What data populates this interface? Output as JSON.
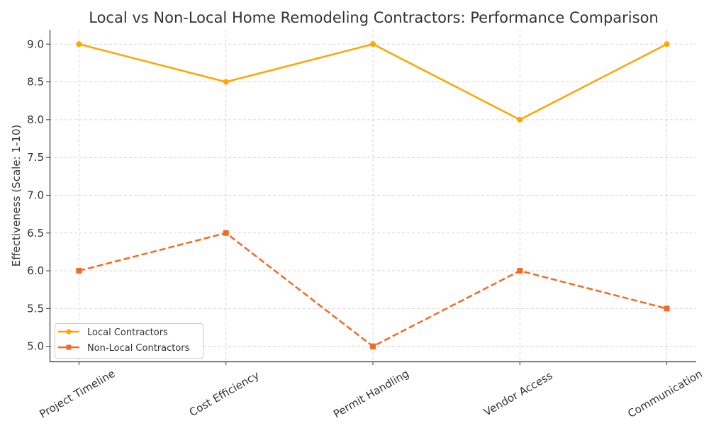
{
  "chart_data": {
    "type": "line",
    "title": "Local vs Non-Local Home Remodeling Contractors: Performance Comparison",
    "xlabel": "",
    "ylabel": "Effectiveness (Scale: 1-10)",
    "categories": [
      "Project Timeline",
      "Cost Efficiency",
      "Permit Handling",
      "Vendor Access",
      "Communication"
    ],
    "series": [
      {
        "name": "Local Contractors",
        "values": [
          9,
          8.5,
          9,
          8,
          9
        ],
        "color": "#FFA500",
        "marker": "circle",
        "linestyle": "solid"
      },
      {
        "name": "Non-Local Contractors",
        "values": [
          6,
          6.5,
          5,
          6,
          5.5
        ],
        "color": "#F26B23",
        "marker": "square",
        "linestyle": "dashed"
      }
    ],
    "ylim": [
      4.8,
      9.19
    ],
    "yticks": [
      "5.0",
      "5.5",
      "6.0",
      "6.5",
      "7.0",
      "7.5",
      "8.0",
      "8.5",
      "9.0"
    ],
    "grid": true,
    "legend_position": "bottom-left"
  }
}
